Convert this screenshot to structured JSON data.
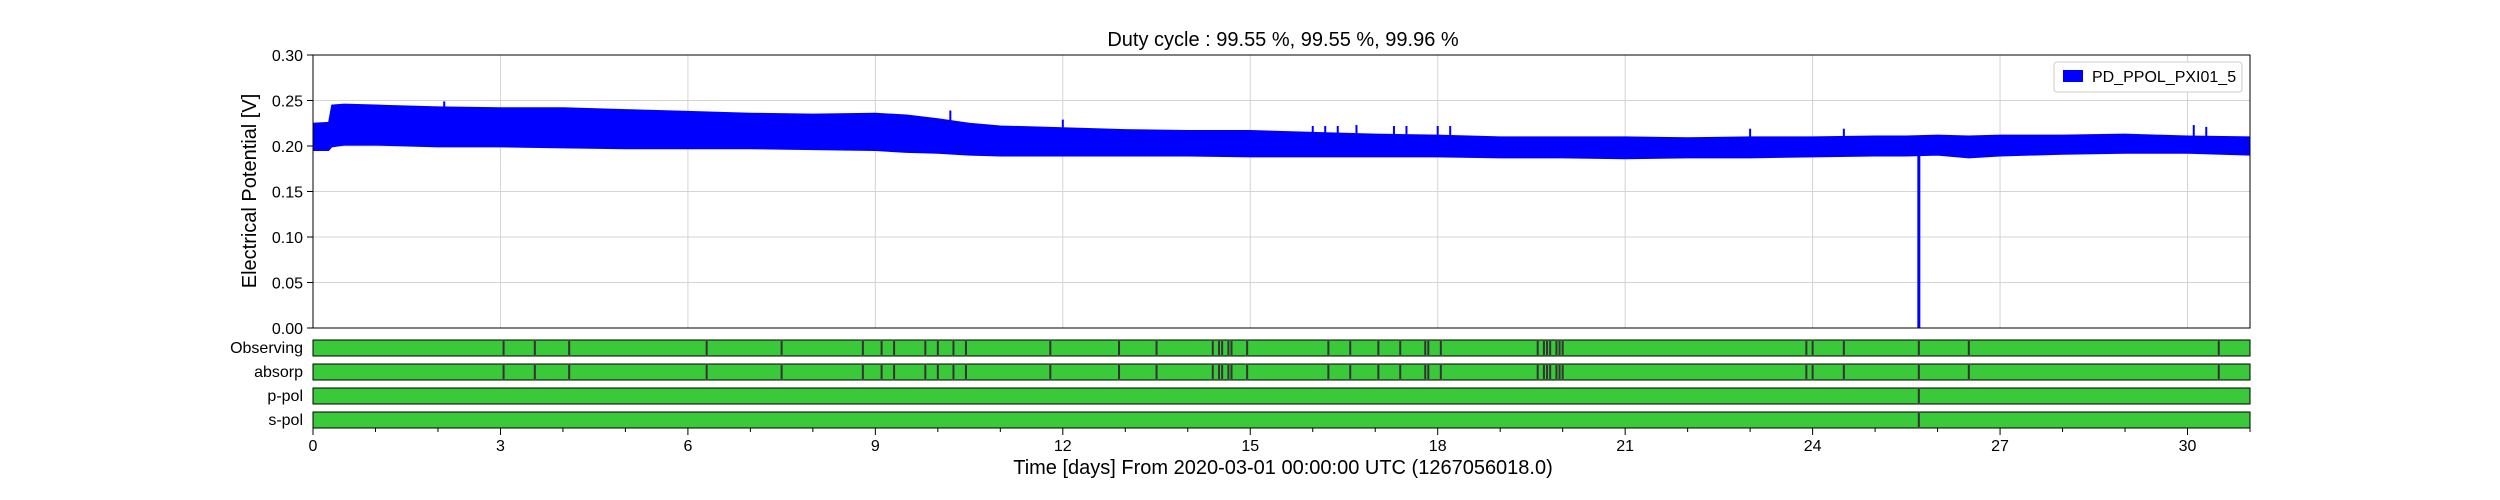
{
  "chart_data": {
    "type": "area",
    "title": "Duty cycle : 99.55 %, 99.55 %, 99.96 %",
    "xlabel": "Time [days] From 2020-03-01 00:00:00 UTC (1267056018.0)",
    "ylabel": "Electrical Potential [V]",
    "xlim": [
      0,
      31
    ],
    "ylim": [
      0,
      0.3
    ],
    "x_ticks": [
      0,
      3,
      6,
      9,
      12,
      15,
      18,
      21,
      24,
      27,
      30
    ],
    "y_ticks": [
      "0.00",
      "0.05",
      "0.10",
      "0.15",
      "0.20",
      "0.25",
      "0.30"
    ],
    "grid": true,
    "legend": {
      "placement": "top-right",
      "entries": [
        {
          "label": "PD_PPOL_PXI01_5",
          "color": "#0000ff"
        }
      ]
    },
    "series": [
      {
        "name": "PD_PPOL_PXI01_5",
        "color": "#0000ff",
        "band": {
          "x": [
            0,
            0.25,
            0.3,
            0.5,
            1,
            2,
            3,
            4,
            5,
            6,
            7,
            8,
            9,
            9.5,
            10,
            10.5,
            11,
            12,
            13,
            14,
            15,
            16,
            17,
            18,
            19,
            20,
            21,
            22,
            23,
            24,
            25,
            25.5,
            26,
            26.5,
            27,
            28,
            29,
            30,
            31
          ],
          "upper": [
            0.225,
            0.226,
            0.245,
            0.246,
            0.245,
            0.243,
            0.242,
            0.242,
            0.24,
            0.238,
            0.236,
            0.235,
            0.236,
            0.234,
            0.23,
            0.225,
            0.222,
            0.22,
            0.218,
            0.217,
            0.217,
            0.215,
            0.213,
            0.212,
            0.21,
            0.21,
            0.21,
            0.209,
            0.21,
            0.21,
            0.211,
            0.211,
            0.212,
            0.211,
            0.212,
            0.212,
            0.213,
            0.211,
            0.21
          ],
          "lower": [
            0.195,
            0.195,
            0.199,
            0.201,
            0.201,
            0.199,
            0.199,
            0.198,
            0.197,
            0.197,
            0.197,
            0.196,
            0.195,
            0.193,
            0.192,
            0.19,
            0.189,
            0.189,
            0.189,
            0.189,
            0.188,
            0.188,
            0.188,
            0.188,
            0.187,
            0.187,
            0.186,
            0.187,
            0.187,
            0.188,
            0.189,
            0.189,
            0.19,
            0.187,
            0.189,
            0.191,
            0.192,
            0.192,
            0.19
          ]
        },
        "spikes": [
          {
            "x": 2.1,
            "y": 0.249
          },
          {
            "x": 10.2,
            "y": 0.239
          },
          {
            "x": 12.0,
            "y": 0.229
          },
          {
            "x": 16.0,
            "y": 0.222
          },
          {
            "x": 16.2,
            "y": 0.222
          },
          {
            "x": 16.4,
            "y": 0.222
          },
          {
            "x": 16.7,
            "y": 0.223
          },
          {
            "x": 17.3,
            "y": 0.222
          },
          {
            "x": 17.5,
            "y": 0.222
          },
          {
            "x": 18.0,
            "y": 0.222
          },
          {
            "x": 18.2,
            "y": 0.222
          },
          {
            "x": 23.0,
            "y": 0.219
          },
          {
            "x": 24.5,
            "y": 0.219
          },
          {
            "x": 30.1,
            "y": 0.223
          },
          {
            "x": 30.3,
            "y": 0.221
          }
        ],
        "dropouts": [
          {
            "x": 25.7,
            "y_min": 0.0,
            "y_max": 0.19
          }
        ]
      }
    ],
    "segment_rows": [
      {
        "label": "Observing",
        "color": "#3ac93a",
        "gaps": [
          3.05,
          3.55,
          4.1,
          6.3,
          7.5,
          8.8,
          9.1,
          9.3,
          9.8,
          10.0,
          10.25,
          10.45,
          11.8,
          12.9,
          13.5,
          14.4,
          14.5,
          14.55,
          14.65,
          14.7,
          14.95,
          16.25,
          16.6,
          17.05,
          17.4,
          17.8,
          17.85,
          18.05,
          19.6,
          19.7,
          19.75,
          19.8,
          19.9,
          19.95,
          20.0,
          23.9,
          24.0,
          24.5,
          25.7,
          26.5,
          30.5
        ]
      },
      {
        "label": "absorp",
        "color": "#3ac93a",
        "gaps": [
          3.05,
          3.55,
          4.1,
          6.3,
          7.5,
          8.8,
          9.1,
          9.3,
          9.8,
          10.0,
          10.25,
          10.45,
          11.8,
          12.9,
          13.5,
          14.4,
          14.5,
          14.55,
          14.65,
          14.7,
          14.95,
          16.25,
          16.6,
          17.05,
          17.4,
          17.8,
          17.85,
          18.05,
          19.6,
          19.7,
          19.75,
          19.8,
          19.9,
          19.95,
          20.0,
          23.9,
          24.0,
          24.5,
          25.7,
          26.5,
          30.5
        ]
      },
      {
        "label": "p-pol",
        "color": "#3ac93a",
        "gaps": [
          25.7
        ]
      },
      {
        "label": "s-pol",
        "color": "#3ac93a",
        "gaps": [
          25.7
        ]
      }
    ]
  }
}
